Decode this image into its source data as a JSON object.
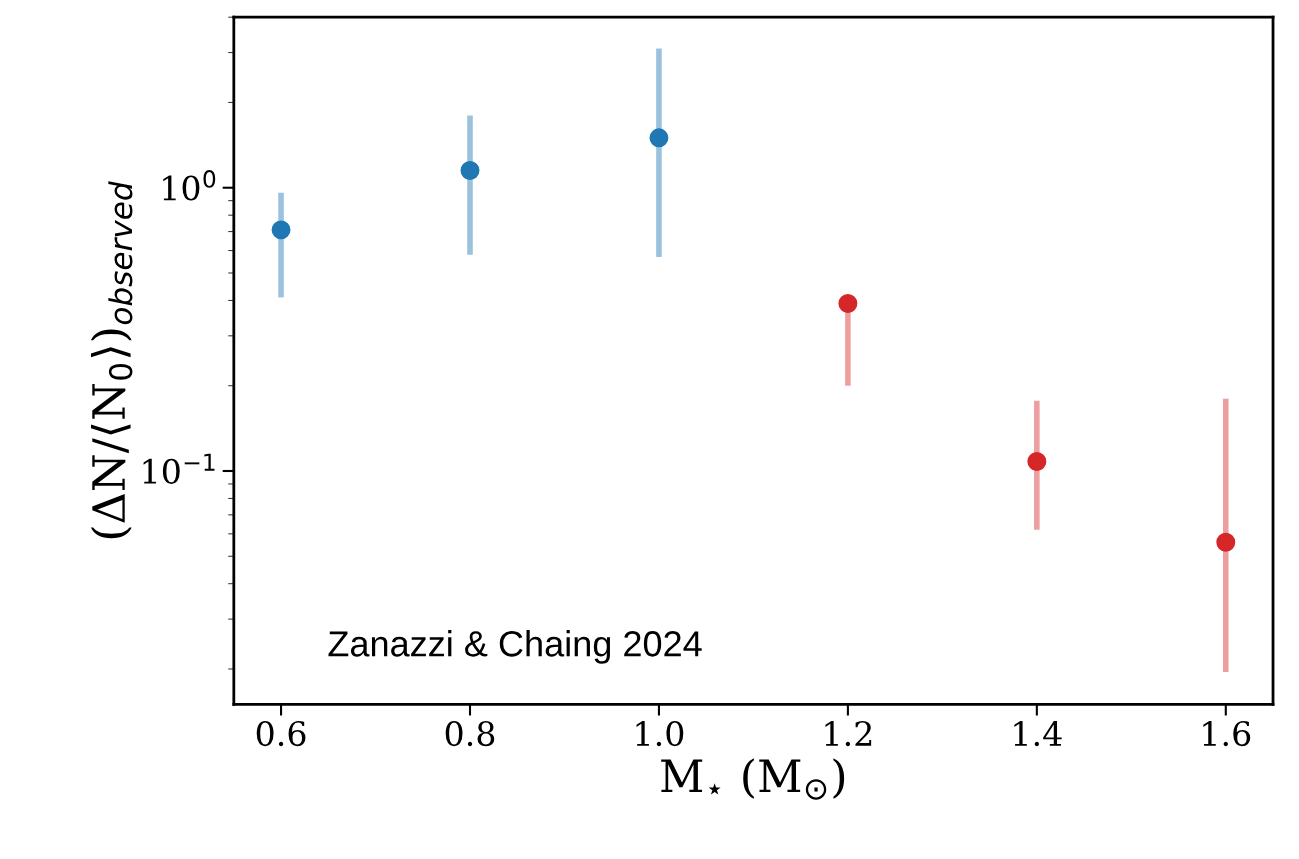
{
  "chart_data": {
    "type": "scatter",
    "xlabel": "M$_{⋆}$ (M$_{⊙}$)",
    "ylabel": "(ΔN/⟨N$_{0}$⟩)$_{observed}$",
    "annotations": [
      "Zanazzi & Chaing 2024"
    ],
    "xlim": [
      0.55,
      1.65
    ],
    "xticks": [
      {
        "value": 0.6,
        "label": "0.6"
      },
      {
        "value": 0.8,
        "label": "0.8"
      },
      {
        "value": 1.0,
        "label": "1.0"
      },
      {
        "value": 1.2,
        "label": "1.2"
      },
      {
        "value": 1.4,
        "label": "1.4"
      },
      {
        "value": 1.6,
        "label": "1.6"
      }
    ],
    "ylim": [
      0.015,
      4.0
    ],
    "yticks": [
      {
        "value": 0.1,
        "label": "10$^{−1}$"
      },
      {
        "value": 1,
        "label": "10$^{0}$"
      }
    ],
    "log": "y",
    "grid": false,
    "legend": false,
    "marker": "circle",
    "series": [
      {
        "color": "#1f77b4",
        "x": [
          0.6,
          0.8,
          1.0
        ],
        "values": [
          0.71,
          1.15,
          1.5
        ],
        "errors": [
          [
            0.41,
            0.96
          ],
          [
            0.58,
            1.8
          ],
          [
            0.57,
            3.1
          ]
        ]
      },
      {
        "color": "#d62728",
        "x": [
          1.2,
          1.4,
          1.6
        ],
        "values": [
          0.39,
          0.108,
          0.056
        ],
        "errors": [
          [
            0.2,
            0.39
          ],
          [
            0.062,
            0.177
          ],
          [
            0.0195,
            0.18
          ]
        ]
      }
    ]
  }
}
